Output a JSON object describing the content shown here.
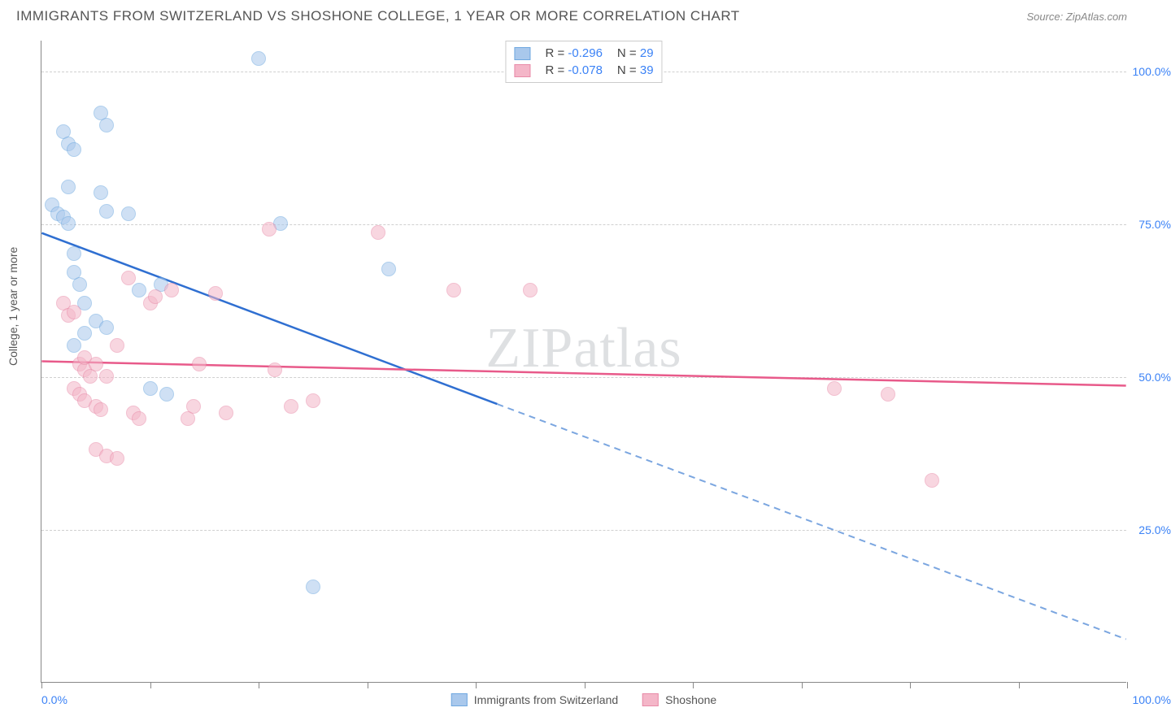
{
  "title": "IMMIGRANTS FROM SWITZERLAND VS SHOSHONE COLLEGE, 1 YEAR OR MORE CORRELATION CHART",
  "source": "Source: ZipAtlas.com",
  "ylabel": "College, 1 year or more",
  "watermark_a": "ZIP",
  "watermark_b": "atlas",
  "chart": {
    "type": "scatter-correlation",
    "background_color": "#ffffff",
    "grid_color": "#d0d0d0",
    "axis_color": "#888888",
    "xlim": [
      0,
      100
    ],
    "ylim": [
      0,
      105
    ],
    "x_tick_positions": [
      0,
      10,
      20,
      30,
      40,
      50,
      60,
      70,
      80,
      90,
      100
    ],
    "x_tick_labels": {
      "left": "0.0%",
      "right": "100.0%"
    },
    "y_gridlines": [
      25,
      50,
      75,
      100
    ],
    "y_tick_labels": [
      "25.0%",
      "50.0%",
      "75.0%",
      "100.0%"
    ],
    "series": [
      {
        "name": "Immigrants from Switzerland",
        "color_fill": "#a9c8ec",
        "color_stroke": "#6fa8e0",
        "fill_opacity": 0.55,
        "marker_radius": 9,
        "R": "-0.296",
        "N": "29",
        "trend": {
          "x1": 0,
          "y1": 73.5,
          "x2": 42,
          "y2": 45.5,
          "x_extend": 100,
          "y_extend": 7,
          "solid_color": "#2f6fd1",
          "dash_color": "#7ba6e0",
          "width": 2.5
        },
        "points": [
          [
            1,
            78
          ],
          [
            1.5,
            76.5
          ],
          [
            2,
            76
          ],
          [
            2.5,
            81
          ],
          [
            2.5,
            75
          ],
          [
            2,
            90
          ],
          [
            2.5,
            88
          ],
          [
            3,
            87
          ],
          [
            3,
            67
          ],
          [
            4,
            62
          ],
          [
            5.5,
            93
          ],
          [
            6,
            91
          ],
          [
            5.5,
            80
          ],
          [
            6,
            77
          ],
          [
            4,
            57
          ],
          [
            3,
            55
          ],
          [
            5,
            59
          ],
          [
            6,
            58
          ],
          [
            8,
            76.5
          ],
          [
            9,
            64
          ],
          [
            10,
            48
          ],
          [
            11,
            65
          ],
          [
            11.5,
            47
          ],
          [
            20,
            102
          ],
          [
            22,
            75
          ],
          [
            25,
            15.5
          ],
          [
            32,
            67.5
          ],
          [
            3.5,
            65
          ],
          [
            3,
            70
          ]
        ]
      },
      {
        "name": "Shoshone",
        "color_fill": "#f4b6c8",
        "color_stroke": "#e88ba8",
        "fill_opacity": 0.55,
        "marker_radius": 9,
        "R": "-0.078",
        "N": "39",
        "trend": {
          "x1": 0,
          "y1": 52.5,
          "x2": 100,
          "y2": 48.5,
          "solid_color": "#e85a8a",
          "width": 2.5
        },
        "points": [
          [
            2,
            62
          ],
          [
            2.5,
            60
          ],
          [
            3,
            60.5
          ],
          [
            3.5,
            52
          ],
          [
            4,
            51
          ],
          [
            4.5,
            50
          ],
          [
            3,
            48
          ],
          [
            3.5,
            47
          ],
          [
            4,
            46
          ],
          [
            5,
            45
          ],
          [
            5.5,
            44.5
          ],
          [
            4,
            53
          ],
          [
            5,
            52
          ],
          [
            6,
            50
          ],
          [
            5,
            38
          ],
          [
            6,
            37
          ],
          [
            7,
            36.5
          ],
          [
            8,
            66
          ],
          [
            8.5,
            44
          ],
          [
            9,
            43
          ],
          [
            10,
            62
          ],
          [
            10.5,
            63
          ],
          [
            12,
            64
          ],
          [
            13.5,
            43
          ],
          [
            14,
            45
          ],
          [
            14.5,
            52
          ],
          [
            16,
            63.5
          ],
          [
            17,
            44
          ],
          [
            21,
            74
          ],
          [
            21.5,
            51
          ],
          [
            23,
            45
          ],
          [
            25,
            46
          ],
          [
            31,
            73.5
          ],
          [
            38,
            64
          ],
          [
            45,
            64
          ],
          [
            73,
            48
          ],
          [
            78,
            47
          ],
          [
            82,
            33
          ],
          [
            7,
            55
          ]
        ]
      }
    ]
  },
  "legend_top": {
    "border_color": "#cccccc",
    "labels": {
      "R": "R =",
      "N": "N ="
    }
  },
  "legend_bottom": {
    "items": [
      "Immigrants from Switzerland",
      "Shoshone"
    ]
  }
}
